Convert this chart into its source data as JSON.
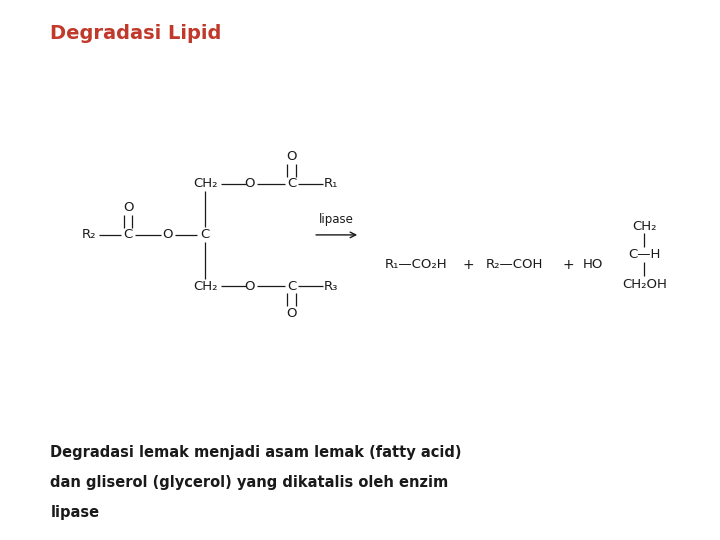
{
  "title": "Degradasi Lipid",
  "title_color": "#c0392b",
  "title_fontsize": 14,
  "background_color": "#ffffff",
  "text_color": "#1a1a1a",
  "description_lines": [
    "Degradasi lemak menjadi asam lemak (fatty acid)",
    "dan gliserol (glycerol) yang dikatalis oleh enzim",
    "lipase"
  ],
  "description_fontsize": 10.5,
  "chem_fontsize": 9.5
}
